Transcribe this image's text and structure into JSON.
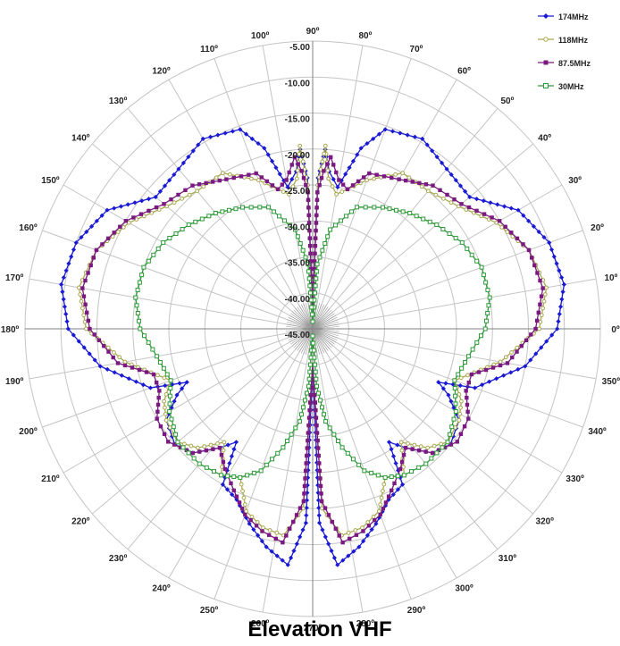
{
  "chart_data": {
    "type": "polar-line",
    "title": "Elevation VHF",
    "radial_axis": {
      "min": -45,
      "max": -5,
      "tick_labels": [
        "-5.00",
        "-10.00",
        "-15.00",
        "-20.00",
        "-25.00",
        "-30.00",
        "-35.00",
        "-40.00",
        "-45.00"
      ]
    },
    "angular_axis": {
      "direction": "counterclockwise",
      "zero": "right",
      "tick_labels": [
        "0º",
        "10º",
        "20º",
        "30º",
        "40º",
        "50º",
        "60º",
        "70º",
        "80º",
        "90º",
        "100º",
        "110º",
        "120º",
        "130º",
        "140º",
        "150º",
        "160º",
        "170º",
        "180º",
        "190º",
        "200º",
        "210º",
        "220º",
        "230º",
        "240º",
        "250º",
        "260º",
        "270º",
        "280º",
        "290º",
        "300º",
        "310º",
        "320º",
        "330º",
        "340º",
        "350º"
      ]
    },
    "grid": true,
    "legend_position": "top-right",
    "series": [
      {
        "name": "174MHz",
        "color": "#1a1ad4",
        "marker": "diamond",
        "points": [
          [
            0,
            -11
          ],
          [
            10,
            -9.5
          ],
          [
            20,
            -10
          ],
          [
            30,
            -12
          ],
          [
            40,
            -16.5
          ],
          [
            50,
            -16
          ],
          [
            60,
            -14.5
          ],
          [
            70,
            -15.5
          ],
          [
            75,
            -19
          ],
          [
            80,
            -25
          ],
          [
            84,
            -23
          ],
          [
            86,
            -20
          ],
          [
            88,
            -24
          ],
          [
            90,
            -42
          ],
          [
            92,
            -24
          ],
          [
            94,
            -20
          ],
          [
            96,
            -23
          ],
          [
            100,
            -25
          ],
          [
            105,
            -19
          ],
          [
            110,
            -15.5
          ],
          [
            120,
            -14.5
          ],
          [
            130,
            -16
          ],
          [
            140,
            -16.5
          ],
          [
            150,
            -12
          ],
          [
            160,
            -10
          ],
          [
            170,
            -9.5
          ],
          [
            180,
            -11
          ],
          [
            190,
            -15
          ],
          [
            200,
            -21
          ],
          [
            203,
            -26
          ],
          [
            206,
            -24
          ],
          [
            212,
            -21
          ],
          [
            220,
            -20
          ],
          [
            226,
            -21
          ],
          [
            232,
            -24
          ],
          [
            236,
            -26
          ],
          [
            240,
            -20
          ],
          [
            246,
            -19
          ],
          [
            252,
            -16.5
          ],
          [
            258,
            -14
          ],
          [
            264,
            -12
          ],
          [
            268,
            -18
          ],
          [
            270,
            -40
          ],
          [
            272,
            -18
          ],
          [
            276,
            -12
          ],
          [
            282,
            -14
          ],
          [
            288,
            -16.5
          ],
          [
            294,
            -19
          ],
          [
            300,
            -20
          ],
          [
            304,
            -26
          ],
          [
            308,
            -24
          ],
          [
            314,
            -21
          ],
          [
            320,
            -20
          ],
          [
            328,
            -21
          ],
          [
            334,
            -24
          ],
          [
            337,
            -26
          ],
          [
            340,
            -21
          ],
          [
            350,
            -15
          ]
        ]
      },
      {
        "name": "118MHz",
        "color": "#a8a850",
        "marker": "circle",
        "points": [
          [
            0,
            -13.5
          ],
          [
            10,
            -12
          ],
          [
            20,
            -13
          ],
          [
            30,
            -15.5
          ],
          [
            40,
            -18.5
          ],
          [
            50,
            -20
          ],
          [
            60,
            -20
          ],
          [
            70,
            -23
          ],
          [
            76,
            -25
          ],
          [
            80,
            -26
          ],
          [
            84,
            -24
          ],
          [
            86,
            -19.5
          ],
          [
            88,
            -25
          ],
          [
            90,
            -42
          ],
          [
            92,
            -25
          ],
          [
            94,
            -19.5
          ],
          [
            96,
            -24
          ],
          [
            100,
            -26
          ],
          [
            104,
            -25
          ],
          [
            110,
            -23
          ],
          [
            120,
            -20
          ],
          [
            130,
            -20
          ],
          [
            140,
            -18.5
          ],
          [
            150,
            -15.5
          ],
          [
            160,
            -13
          ],
          [
            170,
            -12
          ],
          [
            180,
            -13.5
          ],
          [
            190,
            -18.5
          ],
          [
            200,
            -24
          ],
          [
            206,
            -22
          ],
          [
            212,
            -21
          ],
          [
            220,
            -20.5
          ],
          [
            226,
            -22
          ],
          [
            232,
            -25
          ],
          [
            238,
            -21
          ],
          [
            244,
            -22
          ],
          [
            250,
            -18
          ],
          [
            256,
            -16.5
          ],
          [
            262,
            -16
          ],
          [
            267,
            -20
          ],
          [
            270,
            -40
          ],
          [
            273,
            -20
          ],
          [
            278,
            -16
          ],
          [
            284,
            -16.5
          ],
          [
            290,
            -18
          ],
          [
            296,
            -22
          ],
          [
            302,
            -21
          ],
          [
            308,
            -25
          ],
          [
            314,
            -22
          ],
          [
            320,
            -20.5
          ],
          [
            328,
            -21
          ],
          [
            334,
            -22
          ],
          [
            340,
            -24
          ],
          [
            350,
            -18.5
          ]
        ]
      },
      {
        "name": "87.5MHz",
        "color": "#7a1a80",
        "marker": "square",
        "points": [
          [
            0,
            -14
          ],
          [
            10,
            -12.5
          ],
          [
            20,
            -13
          ],
          [
            30,
            -15
          ],
          [
            40,
            -18
          ],
          [
            50,
            -19
          ],
          [
            60,
            -21
          ],
          [
            70,
            -22
          ],
          [
            76,
            -25
          ],
          [
            80,
            -24
          ],
          [
            84,
            -21
          ],
          [
            86,
            -23
          ],
          [
            88,
            -26
          ],
          [
            90,
            -42
          ],
          [
            92,
            -26
          ],
          [
            94,
            -23
          ],
          [
            96,
            -21
          ],
          [
            100,
            -24
          ],
          [
            104,
            -25
          ],
          [
            110,
            -22
          ],
          [
            120,
            -21
          ],
          [
            130,
            -19
          ],
          [
            140,
            -18
          ],
          [
            150,
            -15
          ],
          [
            160,
            -13
          ],
          [
            170,
            -12.5
          ],
          [
            180,
            -14
          ],
          [
            190,
            -17.5
          ],
          [
            196,
            -22
          ],
          [
            202,
            -22
          ],
          [
            210,
            -20
          ],
          [
            218,
            -19.5
          ],
          [
            226,
            -21
          ],
          [
            232,
            -24
          ],
          [
            238,
            -22
          ],
          [
            244,
            -20
          ],
          [
            250,
            -17.5
          ],
          [
            256,
            -16
          ],
          [
            262,
            -15
          ],
          [
            267,
            -21
          ],
          [
            270,
            -40
          ],
          [
            273,
            -21
          ],
          [
            278,
            -15
          ],
          [
            284,
            -16
          ],
          [
            290,
            -17.5
          ],
          [
            296,
            -20
          ],
          [
            302,
            -22
          ],
          [
            308,
            -24
          ],
          [
            314,
            -21
          ],
          [
            322,
            -19.5
          ],
          [
            330,
            -20
          ],
          [
            338,
            -22
          ],
          [
            344,
            -22
          ],
          [
            350,
            -17.5
          ]
        ]
      },
      {
        "name": "30MHz",
        "color": "#2e9a3a",
        "marker": "square-open",
        "points": [
          [
            0,
            -21
          ],
          [
            10,
            -20
          ],
          [
            20,
            -20
          ],
          [
            30,
            -21
          ],
          [
            40,
            -22.5
          ],
          [
            50,
            -24
          ],
          [
            60,
            -25.5
          ],
          [
            70,
            -27
          ],
          [
            80,
            -31
          ],
          [
            86,
            -36
          ],
          [
            90,
            -44
          ],
          [
            94,
            -36
          ],
          [
            100,
            -31
          ],
          [
            110,
            -27
          ],
          [
            120,
            -25.5
          ],
          [
            130,
            -24
          ],
          [
            140,
            -22.5
          ],
          [
            150,
            -21
          ],
          [
            160,
            -20
          ],
          [
            170,
            -20
          ],
          [
            180,
            -21
          ],
          [
            190,
            -23
          ],
          [
            200,
            -24
          ],
          [
            210,
            -22
          ],
          [
            220,
            -20.5
          ],
          [
            230,
            -20.5
          ],
          [
            238,
            -21
          ],
          [
            244,
            -22
          ],
          [
            250,
            -24
          ],
          [
            256,
            -28
          ],
          [
            262,
            -32
          ],
          [
            266,
            -37
          ],
          [
            270,
            -44
          ],
          [
            274,
            -37
          ],
          [
            278,
            -32
          ],
          [
            284,
            -28
          ],
          [
            290,
            -24
          ],
          [
            296,
            -22
          ],
          [
            302,
            -21
          ],
          [
            310,
            -20.5
          ],
          [
            320,
            -20.5
          ],
          [
            330,
            -22
          ],
          [
            340,
            -24
          ],
          [
            350,
            -23
          ]
        ]
      }
    ]
  }
}
